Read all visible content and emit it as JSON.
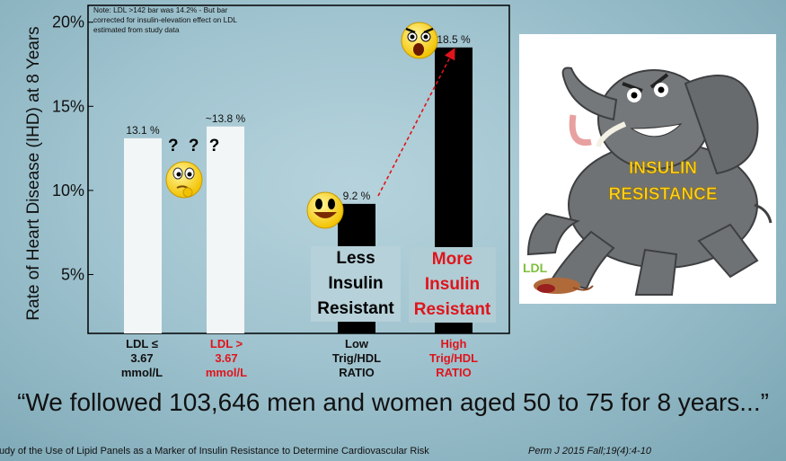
{
  "chart_data": {
    "type": "bar",
    "ylabel": "Rate of Heart Disease (IHD) at 8 Years",
    "y_ticks": [
      "5%",
      "10%",
      "15%",
      "20%"
    ],
    "ylim": [
      1.5,
      21
    ],
    "grid": false,
    "categories": [
      "LDL ≤ 3.67 mmol/L",
      "LDL > 3.67 mmol/L",
      "Low Trig/HDL RATIO",
      "High Trig/HDL RATIO"
    ],
    "values": [
      13.1,
      13.8,
      9.2,
      18.5
    ],
    "value_labels": [
      "13.1 %",
      "~13.8 %",
      "9.2 %",
      "18.5 %"
    ],
    "bar_colors": [
      "#f2f6f7",
      "#f2f6f7",
      "#000000",
      "#000000"
    ],
    "note": "Note: LDL >142 bar was 14.2% - But bar corrected for insulin-elevation effect on LDL estimated from study data",
    "question_marks": "? ? ?"
  },
  "categories_text": {
    "c1": [
      "LDL ≤",
      "3.67",
      "mmol/L"
    ],
    "c2": [
      "LDL >",
      "3.67",
      "mmol/L"
    ],
    "c3": [
      "Low",
      "Trig/HDL",
      "RATIO"
    ],
    "c4": [
      "High",
      "Trig/HDL",
      "RATIO"
    ]
  },
  "overlay_labels": {
    "less": [
      "Less",
      "Insulin",
      "Resistant"
    ],
    "more": [
      "More",
      "Insulin",
      "Resistant"
    ]
  },
  "elephant": {
    "line1": "INSULIN",
    "line2": "RESISTANCE",
    "ldl": "LDL"
  },
  "quote": "“We followed 103,646 men and women aged 50 to 75 for 8 years...”",
  "citation": "tudy of the Use of Lipid Panels as a Marker of Insulin Resistance to Determine Cardiovascular Risk",
  "journal": "Perm J 2015 Fall;19(4):4-10",
  "colors": {
    "emphasis_red": "#e0141b",
    "bar_black": "#000000",
    "bar_white": "#f2f6f7",
    "arrow_red": "#e0141b"
  },
  "icons": [
    "confused-emoji-icon",
    "smiling-emoji-icon",
    "shocked-emoji-icon",
    "angry-elephant-icon",
    "flattened-mouse-icon"
  ]
}
